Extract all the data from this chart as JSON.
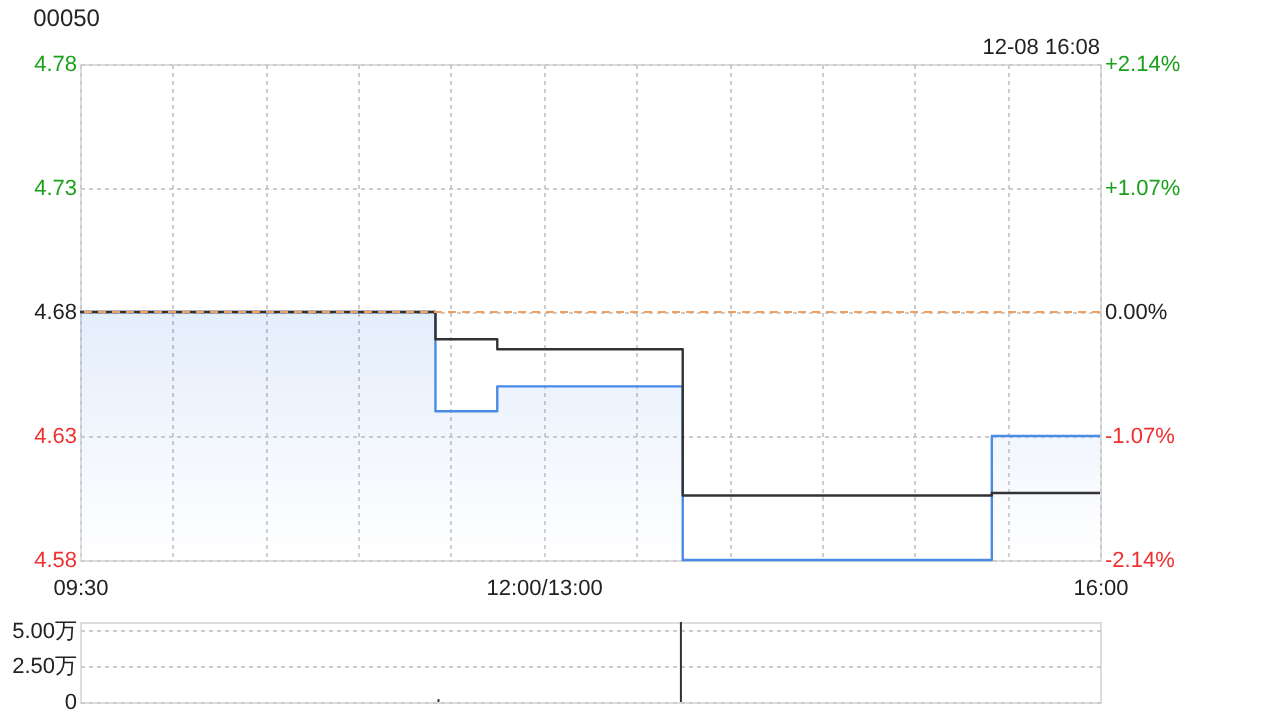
{
  "chart_data": [
    {
      "type": "step",
      "title": "00050",
      "annotations": [
        "12-08 16:08"
      ],
      "categories": [
        "09:30",
        null,
        null,
        null,
        null,
        null,
        null,
        null,
        null,
        null,
        null,
        null,
        null,
        null,
        null,
        null,
        null,
        null,
        null,
        null,
        null,
        null,
        null,
        null,
        null,
        null,
        null,
        null,
        null,
        null,
        "12:00/13:00",
        null,
        null,
        null,
        null,
        null,
        null,
        null,
        null,
        null,
        null,
        null,
        null,
        null,
        null,
        null,
        null,
        null,
        null,
        null,
        null,
        null,
        null,
        null,
        null,
        null,
        null,
        null,
        null,
        null,
        null,
        null,
        null,
        null,
        null,
        null,
        "16:00"
      ],
      "series": [
        {
          "type": "area",
          "color": "#4a8be6",
          "values": [
            4.68,
            4.68,
            4.68,
            4.68,
            4.68,
            4.68,
            4.68,
            4.68,
            4.68,
            4.68,
            4.68,
            4.68,
            4.68,
            4.68,
            4.68,
            4.68,
            4.68,
            4.68,
            4.68,
            4.68,
            4.68,
            4.68,
            4.68,
            4.64,
            4.64,
            4.64,
            4.64,
            4.65,
            4.65,
            4.65,
            4.65,
            4.65,
            4.65,
            4.65,
            4.65,
            4.65,
            4.65,
            4.65,
            4.65,
            4.58,
            4.58,
            4.58,
            4.58,
            4.58,
            4.58,
            4.58,
            4.58,
            4.58,
            4.58,
            4.58,
            4.58,
            4.58,
            4.58,
            4.58,
            4.58,
            4.58,
            4.58,
            4.58,
            4.58,
            4.63,
            4.63,
            4.63,
            4.63,
            4.63,
            4.63,
            4.63,
            4.63
          ]
        },
        {
          "type": "step",
          "color": "#333333",
          "values": [
            4.68,
            4.68,
            4.68,
            4.68,
            4.68,
            4.68,
            4.68,
            4.68,
            4.68,
            4.68,
            4.68,
            4.68,
            4.68,
            4.68,
            4.68,
            4.68,
            4.68,
            4.68,
            4.68,
            4.68,
            4.68,
            4.68,
            4.68,
            4.669,
            4.669,
            4.669,
            4.669,
            4.665,
            4.665,
            4.665,
            4.665,
            4.665,
            4.665,
            4.665,
            4.665,
            4.665,
            4.665,
            4.665,
            4.665,
            4.606,
            4.606,
            4.606,
            4.606,
            4.606,
            4.606,
            4.606,
            4.606,
            4.606,
            4.606,
            4.606,
            4.606,
            4.606,
            4.606,
            4.606,
            4.606,
            4.606,
            4.606,
            4.606,
            4.606,
            4.607,
            4.607,
            4.607,
            4.607,
            4.607,
            4.607,
            4.607,
            4.607
          ]
        }
      ],
      "ylim": [
        4.58,
        4.78
      ],
      "yticks": [
        4.58,
        4.63,
        4.68,
        4.73,
        4.78
      ],
      "y2lim": [
        -2.14,
        2.14
      ],
      "y2ticks": [
        {
          "value": -2.14,
          "label": "-2.14%"
        },
        {
          "value": -1.07,
          "label": "-1.07%"
        },
        {
          "value": 0,
          "label": "0.00%"
        },
        {
          "value": 1.07,
          "label": "+1.07%"
        },
        {
          "value": 2.14,
          "label": "+2.14%"
        }
      ],
      "ref_lines": [
        {
          "axis": "y2",
          "value": 0,
          "color": "#f5a05a",
          "line_style": "dashed"
        }
      ],
      "grid": true
    },
    {
      "type": "bar",
      "color": "#333333",
      "categories": [
        null,
        null,
        null,
        null,
        null,
        null,
        null,
        null,
        null,
        null,
        null,
        null,
        null,
        null,
        null,
        null,
        null,
        null,
        null,
        null,
        null,
        null,
        null,
        null,
        null,
        null,
        null,
        null,
        null,
        null,
        null,
        null,
        null,
        null,
        null,
        null,
        null,
        null,
        null,
        null,
        null,
        null,
        null,
        null,
        null,
        null,
        null,
        null,
        null,
        null,
        null,
        null,
        null,
        null,
        null,
        null,
        null,
        null,
        null,
        null,
        null,
        null,
        null,
        null,
        null,
        null,
        null
      ],
      "values": [
        0,
        0,
        0,
        0,
        0,
        0,
        0,
        0,
        0,
        0,
        0,
        0,
        0,
        0,
        0,
        0,
        0,
        0,
        0,
        0,
        0,
        0,
        0,
        0.2,
        0,
        0,
        0,
        0,
        0,
        0,
        0,
        0,
        0,
        0,
        0,
        0,
        0,
        0,
        0,
        5.6,
        0,
        0,
        0,
        0,
        0,
        0,
        0,
        0,
        0,
        0,
        0,
        0,
        0,
        0,
        0,
        0,
        0,
        0,
        0,
        0,
        0,
        0,
        0,
        0,
        0,
        0,
        0
      ],
      "ylim": [
        0,
        5.6
      ],
      "yticks": [
        {
          "value": 0,
          "label": "0"
        },
        {
          "value": 2.5,
          "label": "2.50万"
        },
        {
          "value": 5,
          "label": "5.00万"
        }
      ],
      "tick_labels": "y",
      "grid": "y"
    }
  ]
}
